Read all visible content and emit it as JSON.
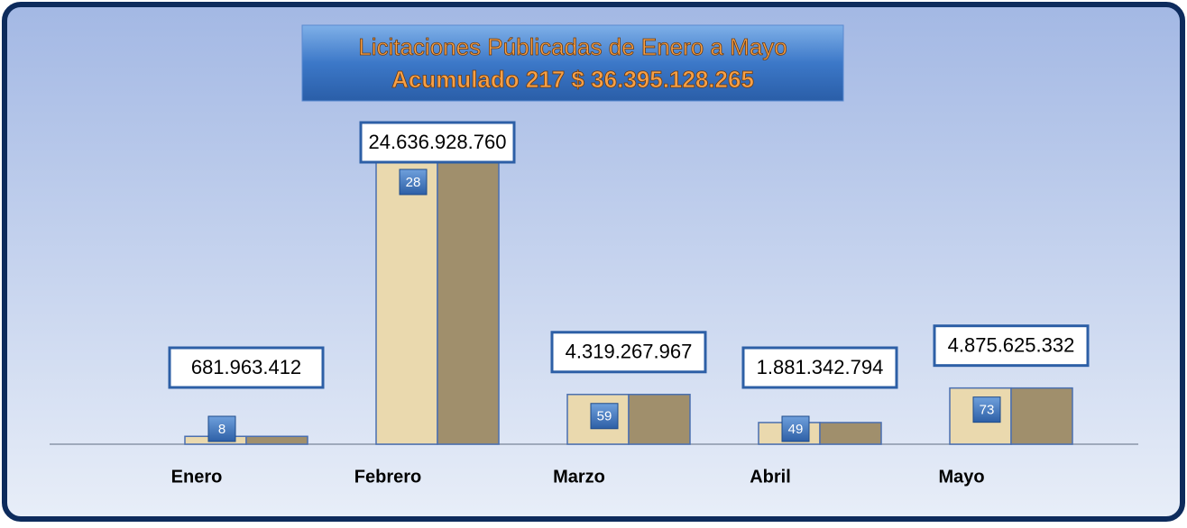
{
  "chart_data": {
    "type": "bar",
    "title": "Licitaciones Públicadas de Enero a Mayo",
    "subtitle": "Acumulado 217   $ 36.395.128.265",
    "categories": [
      "Enero",
      "Febrero",
      "Marzo",
      "Abril",
      "Mayo"
    ],
    "values": [
      681963412,
      24636928760,
      4319267967,
      1881342794,
      4875625332
    ],
    "value_labels": [
      "681.963.412",
      "24.636.928.760",
      "4.319.267.967",
      "1.881.342.794",
      "4.875.625.332"
    ],
    "counts": [
      8,
      28,
      59,
      49,
      73
    ],
    "color": "#ead9ae"
  }
}
